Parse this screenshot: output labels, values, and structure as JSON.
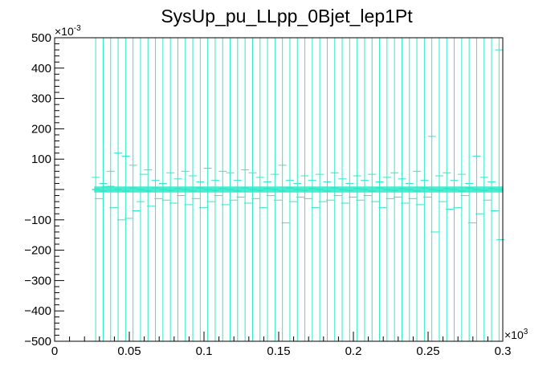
{
  "chart_data": {
    "type": "scatter",
    "title": "SysUp_pu_LLpp_0Bjet_lep1Pt",
    "xlabel": "",
    "ylabel": "",
    "x_multiplier": "×10",
    "x_multiplier_exp": "3",
    "y_multiplier": "×10",
    "y_multiplier_exp": "-3",
    "xlim": [
      0,
      0.3
    ],
    "ylim": [
      -500,
      500
    ],
    "x_tick_labels": [
      "0",
      "0.05",
      "0.1",
      "0.15",
      "0.2",
      "0.25",
      "0.3"
    ],
    "y_tick_labels": [
      "500",
      "400",
      "300",
      "200",
      "100",
      "−100",
      "−200",
      "−300",
      "−400",
      "−500"
    ],
    "grid": false,
    "series_color": "#2ee8c8",
    "error_band": [
      -500,
      500
    ],
    "x_bin_width": 0.005,
    "x": [
      0.0275,
      0.0325,
      0.0375,
      0.0425,
      0.0475,
      0.0525,
      0.0575,
      0.0625,
      0.0675,
      0.0725,
      0.0775,
      0.0825,
      0.0875,
      0.0925,
      0.0975,
      0.1025,
      0.1075,
      0.1125,
      0.1175,
      0.1225,
      0.1275,
      0.1325,
      0.1375,
      0.1425,
      0.1475,
      0.1525,
      0.1575,
      0.1625,
      0.1675,
      0.1725,
      0.1775,
      0.1825,
      0.1875,
      0.1925,
      0.1975,
      0.2025,
      0.2075,
      0.2125,
      0.2175,
      0.2225,
      0.2275,
      0.2325,
      0.2375,
      0.2425,
      0.2475,
      0.2525,
      0.2575,
      0.2625,
      0.2675,
      0.2725,
      0.2775,
      0.2825,
      0.2875,
      0.2925,
      0.2975
    ],
    "y": [
      0,
      -5,
      10,
      0,
      -5,
      5,
      0,
      -5,
      5,
      0,
      -3,
      3,
      0,
      -5,
      5,
      0,
      -3,
      3,
      0,
      -5,
      5,
      0,
      -3,
      3,
      0,
      -5,
      5,
      0,
      -3,
      3,
      0,
      -5,
      5,
      0,
      -3,
      3,
      0,
      -5,
      5,
      0,
      -3,
      3,
      0,
      -5,
      5,
      0,
      -3,
      3,
      0,
      -5,
      5,
      0,
      -3,
      3,
      0
    ],
    "scatter_points": [
      {
        "x": 0.0275,
        "y": 40
      },
      {
        "x": 0.0295,
        "y": -30
      },
      {
        "x": 0.0325,
        "y": 20
      },
      {
        "x": 0.0345,
        "y": 10
      },
      {
        "x": 0.0375,
        "y": 60
      },
      {
        "x": 0.0395,
        "y": -60
      },
      {
        "x": 0.0425,
        "y": 120
      },
      {
        "x": 0.0445,
        "y": -100
      },
      {
        "x": 0.0475,
        "y": 110
      },
      {
        "x": 0.0495,
        "y": -95
      },
      {
        "x": 0.0525,
        "y": 80
      },
      {
        "x": 0.0545,
        "y": -70
      },
      {
        "x": 0.0575,
        "y": -40
      },
      {
        "x": 0.0595,
        "y": 50
      },
      {
        "x": 0.0625,
        "y": 65
      },
      {
        "x": 0.0645,
        "y": -55
      },
      {
        "x": 0.0675,
        "y": 30
      },
      {
        "x": 0.0695,
        "y": -30
      },
      {
        "x": 0.0725,
        "y": 20
      },
      {
        "x": 0.0745,
        "y": -35
      },
      {
        "x": 0.0775,
        "y": 55
      },
      {
        "x": 0.0795,
        "y": -45
      },
      {
        "x": 0.0825,
        "y": 35
      },
      {
        "x": 0.0845,
        "y": -20
      },
      {
        "x": 0.0875,
        "y": 60
      },
      {
        "x": 0.0895,
        "y": -50
      },
      {
        "x": 0.0925,
        "y": 45
      },
      {
        "x": 0.0945,
        "y": -30
      },
      {
        "x": 0.0975,
        "y": 25
      },
      {
        "x": 0.0995,
        "y": -60
      },
      {
        "x": 0.1025,
        "y": 70
      },
      {
        "x": 0.1045,
        "y": -40
      },
      {
        "x": 0.1075,
        "y": 30
      },
      {
        "x": 0.1095,
        "y": -20
      },
      {
        "x": 0.1125,
        "y": 60
      },
      {
        "x": 0.1145,
        "y": -50
      },
      {
        "x": 0.1175,
        "y": 55
      },
      {
        "x": 0.1195,
        "y": -35
      },
      {
        "x": 0.1225,
        "y": 30
      },
      {
        "x": 0.1245,
        "y": -25
      },
      {
        "x": 0.1275,
        "y": 65
      },
      {
        "x": 0.1295,
        "y": -45
      },
      {
        "x": 0.1325,
        "y": 55
      },
      {
        "x": 0.1345,
        "y": -30
      },
      {
        "x": 0.1375,
        "y": 40
      },
      {
        "x": 0.1395,
        "y": -60
      },
      {
        "x": 0.1425,
        "y": 25
      },
      {
        "x": 0.1445,
        "y": -20
      },
      {
        "x": 0.1475,
        "y": 50
      },
      {
        "x": 0.1495,
        "y": -35
      },
      {
        "x": 0.1525,
        "y": 80
      },
      {
        "x": 0.1545,
        "y": -110
      },
      {
        "x": 0.1575,
        "y": 30
      },
      {
        "x": 0.1595,
        "y": -40
      },
      {
        "x": 0.1625,
        "y": 20
      },
      {
        "x": 0.1645,
        "y": -25
      },
      {
        "x": 0.1675,
        "y": 45
      },
      {
        "x": 0.1695,
        "y": -30
      },
      {
        "x": 0.1725,
        "y": 30
      },
      {
        "x": 0.1745,
        "y": -60
      },
      {
        "x": 0.1775,
        "y": 50
      },
      {
        "x": 0.1795,
        "y": -40
      },
      {
        "x": 0.1825,
        "y": 25
      },
      {
        "x": 0.1845,
        "y": -35
      },
      {
        "x": 0.1875,
        "y": 55
      },
      {
        "x": 0.1895,
        "y": -20
      },
      {
        "x": 0.1925,
        "y": 35
      },
      {
        "x": 0.1945,
        "y": -45
      },
      {
        "x": 0.1975,
        "y": 20
      },
      {
        "x": 0.1995,
        "y": -25
      },
      {
        "x": 0.2025,
        "y": 45
      },
      {
        "x": 0.2045,
        "y": -35
      },
      {
        "x": 0.2075,
        "y": 30
      },
      {
        "x": 0.2095,
        "y": -20
      },
      {
        "x": 0.2125,
        "y": 50
      },
      {
        "x": 0.2145,
        "y": -40
      },
      {
        "x": 0.2175,
        "y": 25
      },
      {
        "x": 0.2195,
        "y": -60
      },
      {
        "x": 0.2225,
        "y": 40
      },
      {
        "x": 0.2245,
        "y": -30
      },
      {
        "x": 0.2275,
        "y": 55
      },
      {
        "x": 0.2295,
        "y": -25
      },
      {
        "x": 0.2325,
        "y": 35
      },
      {
        "x": 0.2345,
        "y": -45
      },
      {
        "x": 0.2375,
        "y": 20
      },
      {
        "x": 0.2395,
        "y": -30
      },
      {
        "x": 0.2425,
        "y": 60
      },
      {
        "x": 0.2445,
        "y": -50
      },
      {
        "x": 0.2475,
        "y": 30
      },
      {
        "x": 0.2495,
        "y": -25
      },
      {
        "x": 0.2525,
        "y": 175
      },
      {
        "x": 0.2545,
        "y": -140
      },
      {
        "x": 0.2575,
        "y": 45
      },
      {
        "x": 0.2595,
        "y": -40
      },
      {
        "x": 0.2625,
        "y": 55
      },
      {
        "x": 0.2645,
        "y": -65
      },
      {
        "x": 0.2675,
        "y": 30
      },
      {
        "x": 0.2695,
        "y": -60
      },
      {
        "x": 0.2725,
        "y": 50
      },
      {
        "x": 0.2745,
        "y": -20
      },
      {
        "x": 0.2775,
        "y": 20
      },
      {
        "x": 0.2795,
        "y": -110
      },
      {
        "x": 0.2825,
        "y": 110
      },
      {
        "x": 0.2845,
        "y": -80
      },
      {
        "x": 0.2875,
        "y": 40
      },
      {
        "x": 0.2895,
        "y": -35
      },
      {
        "x": 0.2925,
        "y": 25
      },
      {
        "x": 0.2945,
        "y": -70
      },
      {
        "x": 0.2975,
        "y": 460
      },
      {
        "x": 0.2985,
        "y": -165
      }
    ]
  }
}
